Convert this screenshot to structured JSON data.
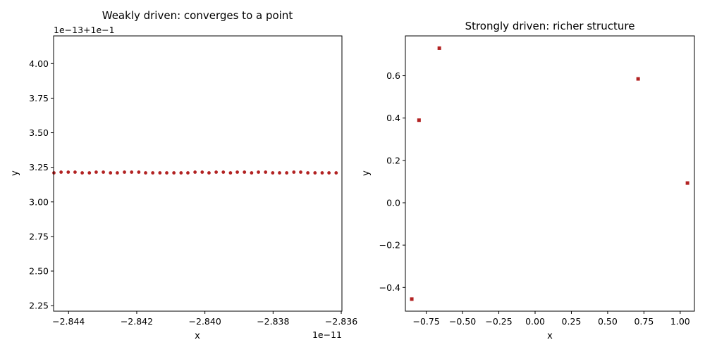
{
  "marker_color": "#b22222",
  "chart_data": [
    {
      "type": "scatter",
      "title": "Weakly driven: converges to a point",
      "xlabel": "x",
      "ylabel": "y",
      "x_offset_label": "1e−11",
      "y_offset_label": "1e−13+1e−1",
      "xlim": [
        -2.84444e-11,
        -2.83598e-11
      ],
      "ylim": [
        2.21,
        4.2
      ],
      "x_ticks": [
        {
          "value": -2.844e-11,
          "label": "−2.844"
        },
        {
          "value": -2.842e-11,
          "label": "−2.842"
        },
        {
          "value": -2.84e-11,
          "label": "−2.840"
        },
        {
          "value": -2.838e-11,
          "label": "−2.838"
        },
        {
          "value": -2.836e-11,
          "label": "−2.836"
        }
      ],
      "y_ticks": [
        {
          "value": 2.25,
          "label": "2.25"
        },
        {
          "value": 2.5,
          "label": "2.50"
        },
        {
          "value": 2.75,
          "label": "2.75"
        },
        {
          "value": 3.0,
          "label": "3.00"
        },
        {
          "value": 3.25,
          "label": "3.25"
        },
        {
          "value": 3.5,
          "label": "3.50"
        },
        {
          "value": 3.75,
          "label": "3.75"
        },
        {
          "value": 4.0,
          "label": "4.00"
        }
      ],
      "grid": false,
      "marker": "circle",
      "points": [
        {
          "x": -2.84443e-11,
          "y": 3.21
        },
        {
          "x": -2.84422e-11,
          "y": 3.215
        },
        {
          "x": -2.84401e-11,
          "y": 3.215
        },
        {
          "x": -2.84381e-11,
          "y": 3.215
        },
        {
          "x": -2.8436e-11,
          "y": 3.21
        },
        {
          "x": -2.84339e-11,
          "y": 3.21
        },
        {
          "x": -2.84319e-11,
          "y": 3.215
        },
        {
          "x": -2.84298e-11,
          "y": 3.215
        },
        {
          "x": -2.84277e-11,
          "y": 3.21
        },
        {
          "x": -2.84257e-11,
          "y": 3.21
        },
        {
          "x": -2.84236e-11,
          "y": 3.215
        },
        {
          "x": -2.84215e-11,
          "y": 3.215
        },
        {
          "x": -2.84194e-11,
          "y": 3.215
        },
        {
          "x": -2.84174e-11,
          "y": 3.21
        },
        {
          "x": -2.84153e-11,
          "y": 3.21
        },
        {
          "x": -2.84132e-11,
          "y": 3.21
        },
        {
          "x": -2.84112e-11,
          "y": 3.21
        },
        {
          "x": -2.84091e-11,
          "y": 3.21
        },
        {
          "x": -2.8407e-11,
          "y": 3.21
        },
        {
          "x": -2.8405e-11,
          "y": 3.21
        },
        {
          "x": -2.84029e-11,
          "y": 3.215
        },
        {
          "x": -2.84008e-11,
          "y": 3.215
        },
        {
          "x": -2.83988e-11,
          "y": 3.21
        },
        {
          "x": -2.83967e-11,
          "y": 3.215
        },
        {
          "x": -2.83946e-11,
          "y": 3.215
        },
        {
          "x": -2.83925e-11,
          "y": 3.21
        },
        {
          "x": -2.83905e-11,
          "y": 3.215
        },
        {
          "x": -2.83884e-11,
          "y": 3.215
        },
        {
          "x": -2.83863e-11,
          "y": 3.21
        },
        {
          "x": -2.83843e-11,
          "y": 3.215
        },
        {
          "x": -2.83822e-11,
          "y": 3.215
        },
        {
          "x": -2.83801e-11,
          "y": 3.21
        },
        {
          "x": -2.83781e-11,
          "y": 3.21
        },
        {
          "x": -2.8376e-11,
          "y": 3.21
        },
        {
          "x": -2.83739e-11,
          "y": 3.215
        },
        {
          "x": -2.83719e-11,
          "y": 3.215
        },
        {
          "x": -2.83698e-11,
          "y": 3.21
        },
        {
          "x": -2.83677e-11,
          "y": 3.21
        },
        {
          "x": -2.83656e-11,
          "y": 3.21
        },
        {
          "x": -2.83636e-11,
          "y": 3.21
        },
        {
          "x": -2.83615e-11,
          "y": 3.21
        }
      ]
    },
    {
      "type": "scatter",
      "title": "Strongly driven: richer structure",
      "xlabel": "x",
      "ylabel": "y",
      "xlim": [
        -0.894,
        1.098
      ],
      "ylim": [
        -0.512,
        0.788
      ],
      "x_ticks": [
        {
          "value": -0.75,
          "label": "−0.75"
        },
        {
          "value": -0.5,
          "label": "−0.50"
        },
        {
          "value": -0.25,
          "label": "−0.25"
        },
        {
          "value": 0.0,
          "label": "0.00"
        },
        {
          "value": 0.25,
          "label": "0.25"
        },
        {
          "value": 0.5,
          "label": "0.50"
        },
        {
          "value": 0.75,
          "label": "0.75"
        },
        {
          "value": 1.0,
          "label": "1.00"
        }
      ],
      "y_ticks": [
        {
          "value": -0.4,
          "label": "−0.4"
        },
        {
          "value": -0.2,
          "label": "−0.2"
        },
        {
          "value": 0.0,
          "label": "0.0"
        },
        {
          "value": 0.2,
          "label": "0.2"
        },
        {
          "value": 0.4,
          "label": "0.4"
        },
        {
          "value": 0.6,
          "label": "0.6"
        }
      ],
      "grid": false,
      "marker": "square",
      "points": [
        {
          "x": -0.66,
          "y": 0.73
        },
        {
          "x": 0.71,
          "y": 0.585
        },
        {
          "x": -0.8,
          "y": 0.39
        },
        {
          "x": 1.05,
          "y": 0.093
        },
        {
          "x": -0.85,
          "y": -0.455
        }
      ]
    }
  ]
}
